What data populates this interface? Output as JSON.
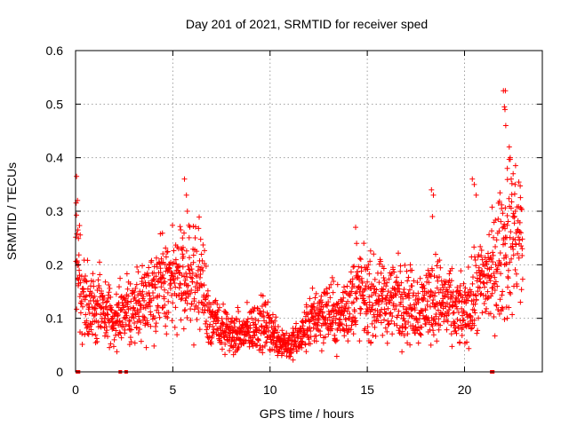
{
  "chart_data": {
    "type": "scatter",
    "title": "Day 201 of 2021, SRMTID for receiver sped",
    "xlabel": "GPS time / hours",
    "ylabel": "SRMTID / TECUs",
    "xlim": [
      0,
      24
    ],
    "ylim": [
      0,
      0.6
    ],
    "xticks": [
      0,
      5,
      10,
      15,
      20
    ],
    "xtick_labels": [
      "0",
      "5",
      "10",
      "15",
      "20"
    ],
    "yticks": [
      0,
      0.1,
      0.2,
      0.3,
      0.4,
      0.5,
      0.6
    ],
    "ytick_labels": [
      "0",
      "0.1",
      "0.2",
      "0.3",
      "0.4",
      "0.5",
      "0.6"
    ],
    "grid": true,
    "marker": "+",
    "color": "#ff0000",
    "series": [
      {
        "name": "SRMTID",
        "trend": [
          [
            0.0,
            0.23
          ],
          [
            0.3,
            0.15
          ],
          [
            0.6,
            0.12
          ],
          [
            1.0,
            0.13
          ],
          [
            1.5,
            0.11
          ],
          [
            2.0,
            0.1
          ],
          [
            2.5,
            0.11
          ],
          [
            3.0,
            0.12
          ],
          [
            3.5,
            0.14
          ],
          [
            4.0,
            0.15
          ],
          [
            4.5,
            0.16
          ],
          [
            5.0,
            0.17
          ],
          [
            5.5,
            0.17
          ],
          [
            6.0,
            0.18
          ],
          [
            6.5,
            0.17
          ],
          [
            6.9,
            0.1
          ],
          [
            7.5,
            0.08
          ],
          [
            8.0,
            0.07
          ],
          [
            8.5,
            0.07
          ],
          [
            9.0,
            0.08
          ],
          [
            9.5,
            0.09
          ],
          [
            10.0,
            0.08
          ],
          [
            10.5,
            0.06
          ],
          [
            11.0,
            0.05
          ],
          [
            11.5,
            0.06
          ],
          [
            12.0,
            0.09
          ],
          [
            12.5,
            0.11
          ],
          [
            13.0,
            0.11
          ],
          [
            13.5,
            0.1
          ],
          [
            14.0,
            0.12
          ],
          [
            14.5,
            0.15
          ],
          [
            15.0,
            0.14
          ],
          [
            15.5,
            0.13
          ],
          [
            16.0,
            0.13
          ],
          [
            16.5,
            0.14
          ],
          [
            17.0,
            0.13
          ],
          [
            17.5,
            0.12
          ],
          [
            18.0,
            0.13
          ],
          [
            18.5,
            0.14
          ],
          [
            19.0,
            0.13
          ],
          [
            19.5,
            0.11
          ],
          [
            20.0,
            0.11
          ],
          [
            20.5,
            0.14
          ],
          [
            21.0,
            0.17
          ],
          [
            21.5,
            0.19
          ],
          [
            22.0,
            0.23
          ],
          [
            22.5,
            0.26
          ],
          [
            23.0,
            0.24
          ]
        ],
        "spikes": [
          [
            0.05,
            0.365
          ],
          [
            0.1,
            0.32
          ],
          [
            0.12,
            0.265
          ],
          [
            0.15,
            0.2
          ],
          [
            5.6,
            0.36
          ],
          [
            5.7,
            0.33
          ],
          [
            5.75,
            0.3
          ],
          [
            5.5,
            0.25
          ],
          [
            14.4,
            0.27
          ],
          [
            14.45,
            0.24
          ],
          [
            18.3,
            0.34
          ],
          [
            18.4,
            0.33
          ],
          [
            18.35,
            0.29
          ],
          [
            20.4,
            0.36
          ],
          [
            20.5,
            0.35
          ],
          [
            20.6,
            0.33
          ],
          [
            22.0,
            0.525
          ],
          [
            22.1,
            0.525
          ],
          [
            22.05,
            0.495
          ],
          [
            22.08,
            0.49
          ],
          [
            22.12,
            0.46
          ],
          [
            22.3,
            0.42
          ],
          [
            22.35,
            0.4
          ],
          [
            22.5,
            0.37
          ],
          [
            22.2,
            0.38
          ],
          [
            22.4,
            0.36
          ],
          [
            22.6,
            0.35
          ],
          [
            22.2,
            0.1
          ]
        ],
        "zero_points": [
          0.1,
          0.12,
          0.15,
          2.3,
          2.6,
          21.4,
          21.45
        ]
      }
    ]
  }
}
